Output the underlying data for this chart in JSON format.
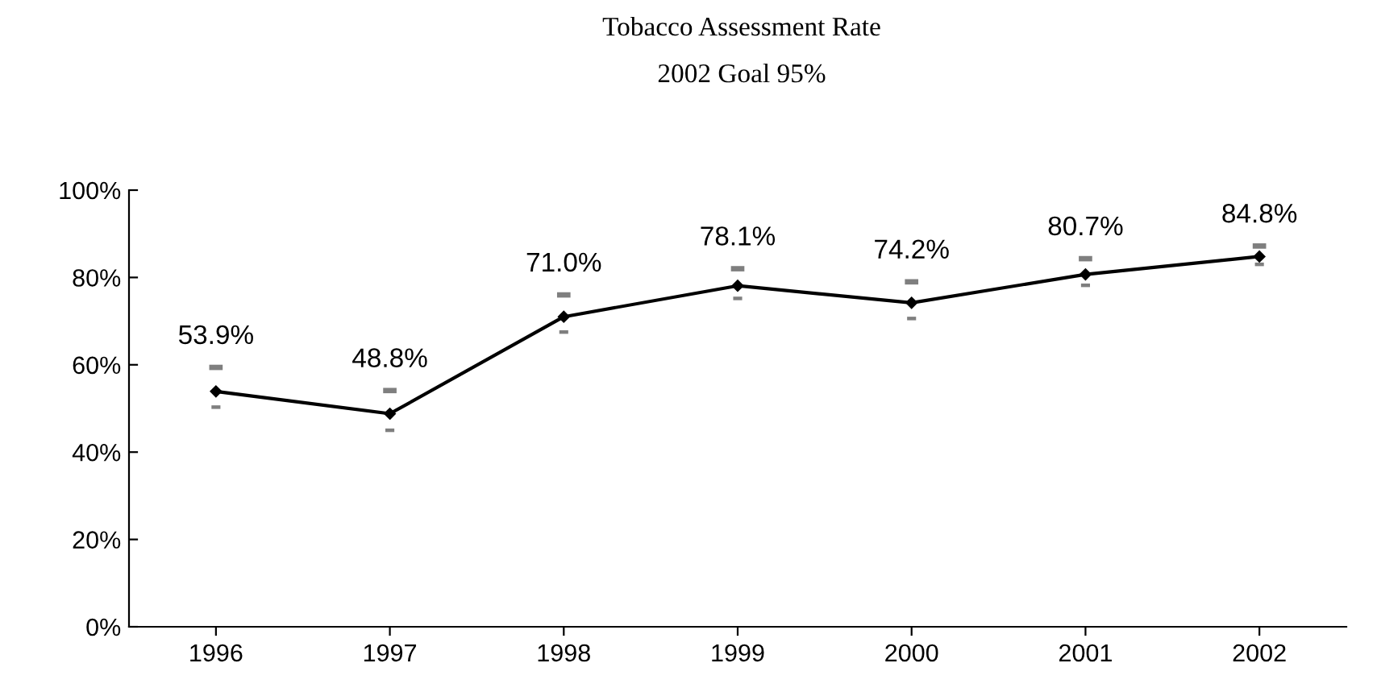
{
  "chart_data": {
    "type": "line",
    "title": "Tobacco Assessment Rate",
    "subtitle": "2002 Goal 95%",
    "categories": [
      "1996",
      "1997",
      "1998",
      "1999",
      "2000",
      "2001",
      "2002"
    ],
    "series": [
      {
        "color": "#000000",
        "values": [
          53.9,
          48.8,
          71.0,
          78.1,
          74.2,
          80.7,
          84.8
        ],
        "value_labels": [
          "53.9%",
          "48.8%",
          "71.0%",
          "78.1%",
          "74.2%",
          "80.7%",
          "84.8%"
        ]
      },
      {
        "type": "scatter",
        "marker": "square",
        "color": "#7f7f7f",
        "values": [
          59.4,
          54.1,
          76.0,
          82.0,
          79.0,
          84.3,
          87.2
        ]
      },
      {
        "type": "scatter",
        "marker": "square",
        "color": "#7f7f7f",
        "values": [
          50.3,
          45.0,
          67.5,
          75.2,
          70.6,
          78.2,
          83.0
        ]
      }
    ],
    "ylim": [
      0,
      100
    ],
    "yticks": [
      {
        "value": 0,
        "label": "0%"
      },
      {
        "value": 20,
        "label": "20%"
      },
      {
        "value": 40,
        "label": "40%"
      },
      {
        "value": 60,
        "label": "60%"
      },
      {
        "value": 80,
        "label": "80%"
      },
      {
        "value": 100,
        "label": "100%"
      }
    ],
    "marker": "diamond",
    "line_style": "solid",
    "grid": false,
    "legend": false
  }
}
